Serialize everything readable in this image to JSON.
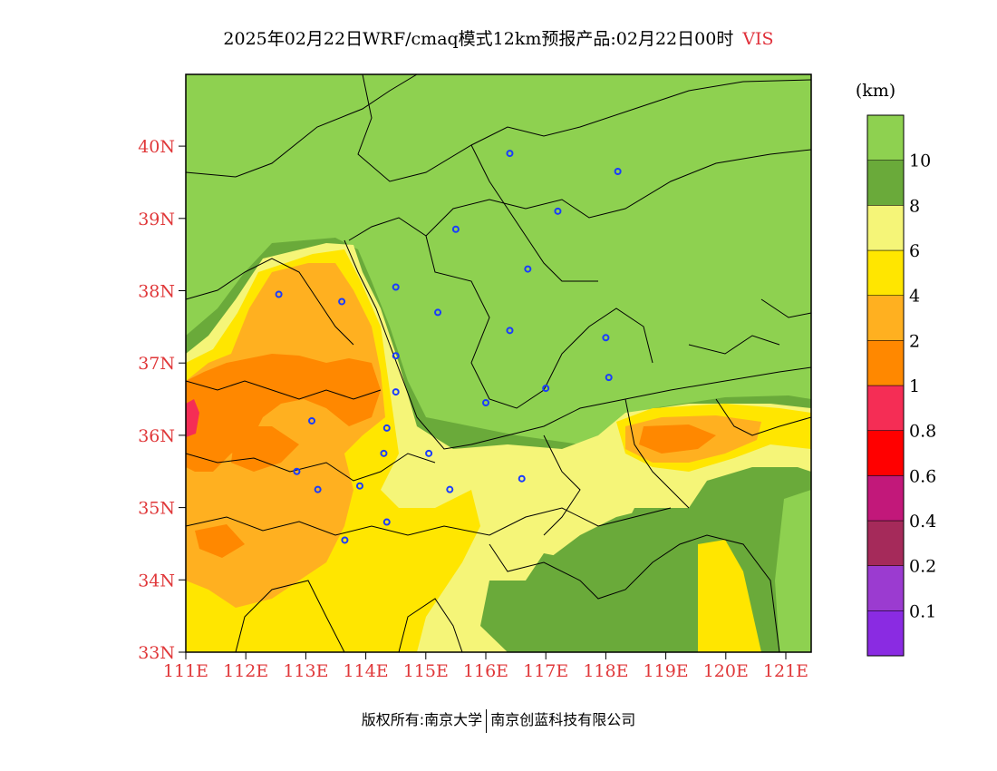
{
  "title": {
    "text": "2025年02月22日WRF/cmaq模式12km预报产品:02月22日00时",
    "variable": "VIS"
  },
  "colorbar": {
    "unit": "(km)",
    "colors": [
      "#8a2be2",
      "#9b3bd0",
      "#a52a5a",
      "#c2187a",
      "#ff0000",
      "#f52d55",
      "#ff8800",
      "#ffb020",
      "#ffe600",
      "#f5f578",
      "#6aaa3a",
      "#8ed150"
    ],
    "labels": [
      "0.1",
      "0.2",
      "0.4",
      "0.6",
      "0.8",
      "1",
      "2",
      "4",
      "6",
      "8",
      "10"
    ]
  },
  "axes": {
    "lat_ticks": [
      "40N",
      "39N",
      "38N",
      "37N",
      "36N",
      "35N",
      "34N",
      "33N"
    ],
    "lon_ticks": [
      "111E",
      "112E",
      "113E",
      "114E",
      "115E",
      "116E",
      "117E",
      "118E",
      "119E",
      "120E",
      "121E"
    ]
  },
  "map_colors": {
    "vis_gt10": "#8ed150",
    "vis_8_10": "#6aaa3a",
    "vis_6_8": "#f5f578",
    "vis_4_6": "#ffe600",
    "vis_2_4": "#ffb020",
    "vis_1_2": "#ff8800",
    "vis_0_8_1": "#f52d55"
  },
  "stations": [
    {
      "lon": 116.4,
      "lat": 39.9
    },
    {
      "lon": 117.2,
      "lat": 39.1
    },
    {
      "lon": 118.2,
      "lat": 39.65
    },
    {
      "lon": 115.5,
      "lat": 38.85
    },
    {
      "lon": 116.7,
      "lat": 38.3
    },
    {
      "lon": 114.5,
      "lat": 38.05
    },
    {
      "lon": 115.2,
      "lat": 37.7
    },
    {
      "lon": 116.4,
      "lat": 37.45
    },
    {
      "lon": 118.0,
      "lat": 37.35
    },
    {
      "lon": 114.5,
      "lat": 37.1
    },
    {
      "lon": 114.5,
      "lat": 36.6
    },
    {
      "lon": 116.0,
      "lat": 36.45
    },
    {
      "lon": 117.0,
      "lat": 36.65
    },
    {
      "lon": 118.05,
      "lat": 36.8
    },
    {
      "lon": 114.35,
      "lat": 36.1
    },
    {
      "lon": 112.55,
      "lat": 37.95
    },
    {
      "lon": 113.6,
      "lat": 37.85
    },
    {
      "lon": 113.1,
      "lat": 36.2
    },
    {
      "lon": 112.85,
      "lat": 35.5
    },
    {
      "lon": 113.2,
      "lat": 35.25
    },
    {
      "lon": 113.9,
      "lat": 35.3
    },
    {
      "lon": 114.3,
      "lat": 35.75
    },
    {
      "lon": 115.05,
      "lat": 35.75
    },
    {
      "lon": 115.4,
      "lat": 35.25
    },
    {
      "lon": 116.6,
      "lat": 35.4
    },
    {
      "lon": 114.35,
      "lat": 34.8
    },
    {
      "lon": 113.65,
      "lat": 34.55
    }
  ],
  "footer": {
    "left": "版权所有:南京大学",
    "right": "南京创蓝科技有限公司"
  }
}
